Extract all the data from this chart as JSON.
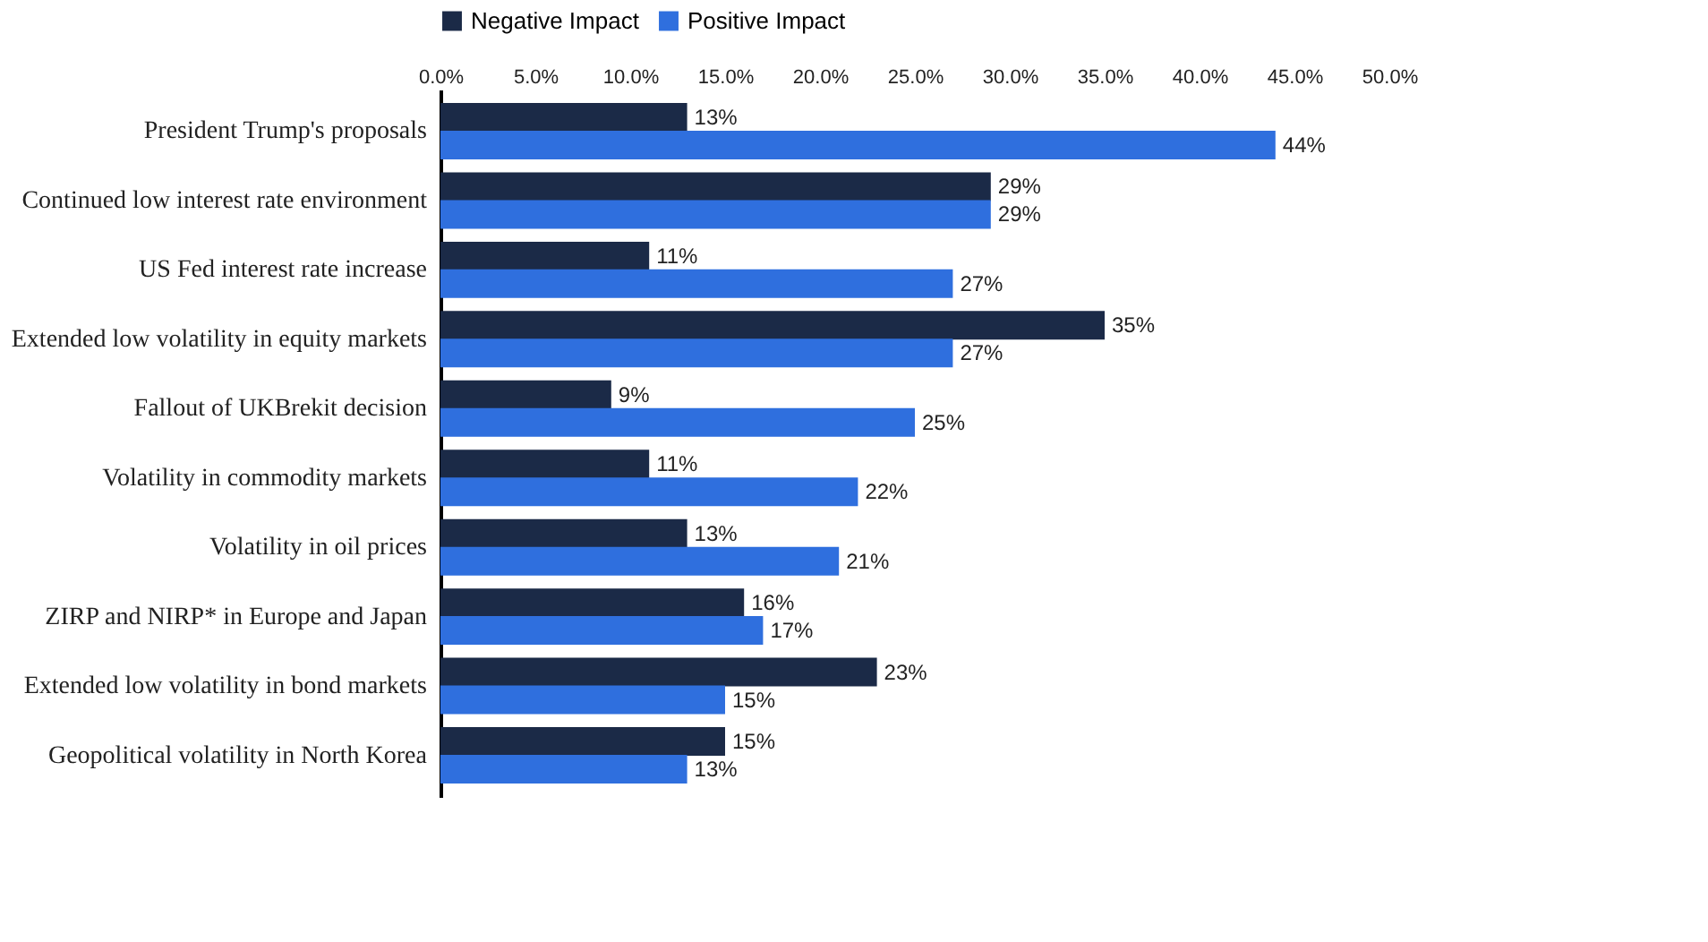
{
  "chart_data": {
    "type": "bar",
    "orientation": "horizontal",
    "categories": [
      "President Trump's proposals",
      "Continued low interest rate environment",
      "US Fed interest rate increase",
      "Extended low volatility in equity markets",
      "Fallout of UKBrekit decision",
      "Volatility in commodity markets",
      "Volatility in oil prices",
      "ZIRP and NIRP* in Europe and Japan",
      "Extended low volatility in bond markets",
      "Geopolitical volatility in North Korea"
    ],
    "series": [
      {
        "name": "Negative Impact",
        "color": "#1b2a47",
        "values": [
          13,
          29,
          11,
          35,
          9,
          11,
          13,
          16,
          23,
          15
        ],
        "value_labels": [
          "13%",
          "29%",
          "11%",
          "35%",
          "9%",
          "11%",
          "13%",
          "16%",
          "23%",
          "15%"
        ]
      },
      {
        "name": "Positive Impact",
        "color": "#2f6fde",
        "values": [
          44,
          29,
          27,
          27,
          25,
          22,
          21,
          17,
          15,
          13
        ],
        "value_labels": [
          "44%",
          "29%",
          "27%",
          "27%",
          "25%",
          "22%",
          "21%",
          "17%",
          "15%",
          "13%"
        ]
      }
    ],
    "xlim": [
      0,
      50
    ],
    "xticks": [
      {
        "value": 0,
        "label": "0.0%"
      },
      {
        "value": 5,
        "label": "5.0%"
      },
      {
        "value": 10,
        "label": "10.0%"
      },
      {
        "value": 15,
        "label": "15.0%"
      },
      {
        "value": 20,
        "label": "20.0%"
      },
      {
        "value": 25,
        "label": "25.0%"
      },
      {
        "value": 30,
        "label": "30.0%"
      },
      {
        "value": 35,
        "label": "35.0%"
      },
      {
        "value": 40,
        "label": "40.0%"
      },
      {
        "value": 45,
        "label": "45.0%"
      },
      {
        "value": 50,
        "label": "50.0%"
      }
    ],
    "legend": "top",
    "grid": false
  }
}
